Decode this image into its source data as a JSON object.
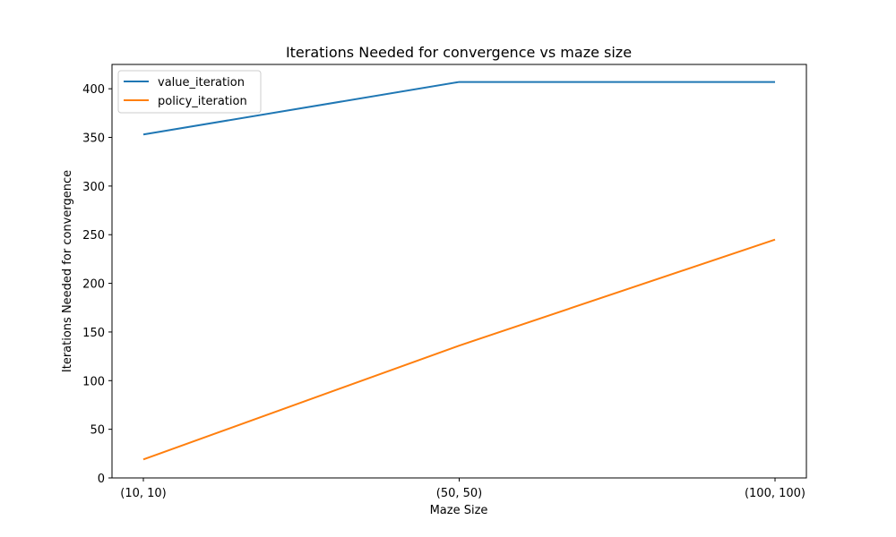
{
  "chart_data": {
    "type": "line",
    "title": "Iterations Needed for convergence vs maze size",
    "xlabel": "Maze Size",
    "ylabel": "Iterations Needed for convergence",
    "categories": [
      "(10, 10)",
      "(50, 50)",
      "(100, 100)"
    ],
    "ylim": [
      0,
      425
    ],
    "yticks": [
      0,
      50,
      100,
      150,
      200,
      250,
      300,
      350,
      400
    ],
    "grid": false,
    "legend_position": "top-left",
    "series": [
      {
        "name": "value_iteration",
        "color": "#1f77b4",
        "values": [
          353,
          407,
          407
        ]
      },
      {
        "name": "policy_iteration",
        "color": "#ff7f0e",
        "values": [
          19,
          136,
          245
        ]
      }
    ]
  }
}
